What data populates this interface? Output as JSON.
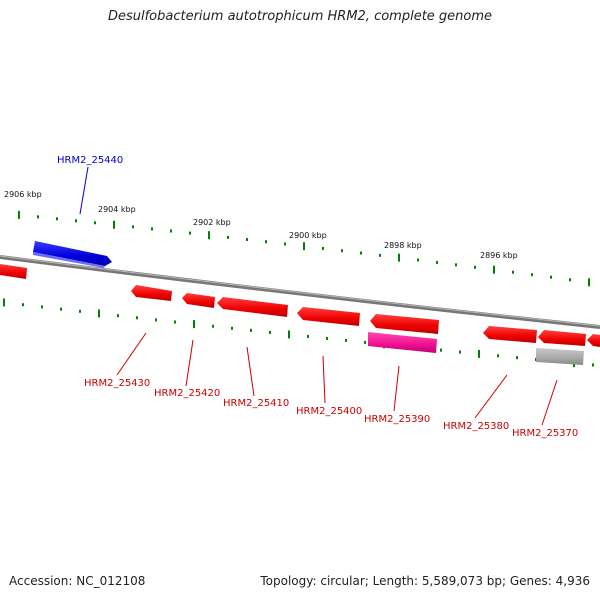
{
  "title": "Desulfobacterium autotrophicum HRM2, complete genome",
  "footer": {
    "accession": "Accession: NC_012108",
    "summary": "Topology: circular; Length: 5,589,073 bp; Genes: 4,936"
  },
  "colors": {
    "plus_strand_gene": "#0000ff",
    "minus_strand_gene": "#ff0000",
    "highlighted_gene": "#ff1493",
    "pseudo_gene": "#aaaaaa",
    "backbone": "#808080",
    "ticks": "#008000"
  },
  "scale_labels": [
    "2906 kbp",
    "2904 kbp",
    "2902 kbp",
    "2900 kbp",
    "2898 kbp",
    "2896 kbp"
  ],
  "gene_labels": [
    "HRM2_25440",
    "HRM2_25430",
    "HRM2_25420",
    "HRM2_25410",
    "HRM2_25400",
    "HRM2_25390",
    "HRM2_25380",
    "HRM2_25370"
  ]
}
